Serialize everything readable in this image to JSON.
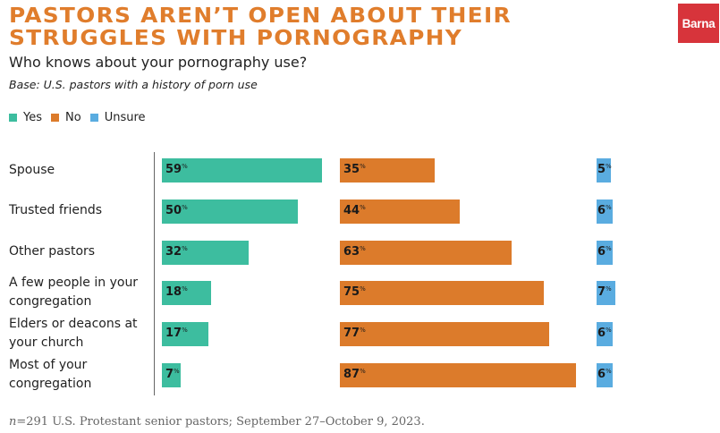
{
  "header": {
    "title_line1": "PASTORS AREN’T OPEN ABOUT THEIR",
    "title_line2": "STRUGGLES WITH PORNOGRAPHY",
    "subtitle": "Who knows about your pornography use?",
    "base": "Base: U.S. pastors with a history of porn use",
    "logo_text": "Barna"
  },
  "colors": {
    "title": "#e07d2c",
    "yes": "#3dbd9f",
    "no": "#dc7b2b",
    "unsure": "#5aace0",
    "logo_bg": "#d7343b"
  },
  "footnote": {
    "n_symbol": "n",
    "text": "=291 U.S. Protestant senior pastors; September 27–October 9, 2023."
  },
  "chart_data": {
    "type": "bar",
    "orientation": "horizontal",
    "title": "Who knows about your pornography use?",
    "xlabel": "",
    "ylabel": "",
    "unit": "%",
    "xlim": [
      0,
      100
    ],
    "grid": false,
    "legend_position": "top-left",
    "categories": [
      "Spouse",
      "Trusted friends",
      "Other pastors",
      "A few people in your congregation",
      "Elders or deacons at your church",
      "Most of your congregation"
    ],
    "category_lines": [
      [
        "Spouse"
      ],
      [
        "Trusted friends"
      ],
      [
        "Other pastors"
      ],
      [
        "A few people in your",
        "congregation"
      ],
      [
        "Elders or deacons at",
        "your church"
      ],
      [
        "Most of your",
        "congregation"
      ]
    ],
    "series": [
      {
        "name": "Yes",
        "color": "#3dbd9f",
        "values": [
          59,
          50,
          32,
          18,
          17,
          7
        ]
      },
      {
        "name": "No",
        "color": "#dc7b2b",
        "values": [
          35,
          44,
          63,
          75,
          77,
          87
        ]
      },
      {
        "name": "Unsure",
        "color": "#5aace0",
        "values": [
          5,
          6,
          6,
          7,
          6,
          6
        ]
      }
    ]
  }
}
